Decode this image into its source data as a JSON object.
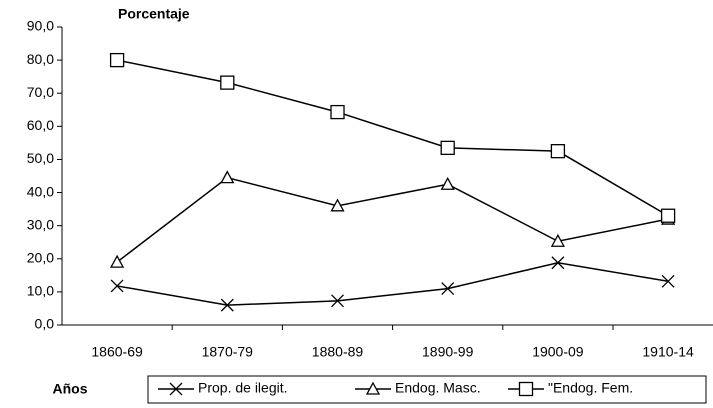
{
  "chart_data": {
    "type": "line",
    "y_label": "Porcentaje",
    "x_label": "Años",
    "categories": [
      "1860-69",
      "1870-79",
      "1880-89",
      "1890-99",
      "1900-09",
      "1910-14"
    ],
    "series": [
      {
        "name": "Prop. de ilegit.",
        "color": "#000000",
        "marker": "x",
        "values": [
          11.8,
          6.0,
          7.3,
          11.0,
          18.8,
          13.2
        ]
      },
      {
        "name": "Endog. Masc.",
        "color": "#000000",
        "marker": "triangle",
        "values": [
          19.0,
          44.5,
          36.0,
          42.5,
          25.3,
          32.0
        ]
      },
      {
        "name": "\"Endog. Fem.",
        "color": "#000000",
        "marker": "square",
        "values": [
          80.0,
          73.2,
          64.3,
          53.5,
          52.5,
          33.0
        ]
      }
    ],
    "ylim": [
      0,
      90
    ],
    "yticks": [
      {
        "value": 0,
        "label": "0,0"
      },
      {
        "value": 10,
        "label": "10,0"
      },
      {
        "value": 20,
        "label": "20,0"
      },
      {
        "value": 30,
        "label": "30,0"
      },
      {
        "value": 40,
        "label": "40,0"
      },
      {
        "value": 50,
        "label": "50,0"
      },
      {
        "value": 60,
        "label": "60,0"
      },
      {
        "value": 70,
        "label": "70,0"
      },
      {
        "value": 80,
        "label": "80,0"
      },
      {
        "value": 90,
        "label": "90,0"
      }
    ],
    "grid": false,
    "legend": "bottom"
  }
}
